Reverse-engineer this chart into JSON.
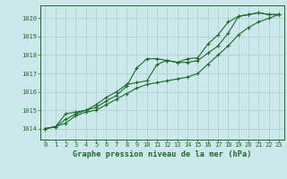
{
  "title": "Graphe pression niveau de la mer (hPa)",
  "bg_color": "#cce8ea",
  "grid_color": "#afd4d6",
  "line_color": "#1a6b2a",
  "spine_color": "#1a6b2a",
  "x_ticks": [
    0,
    1,
    2,
    3,
    4,
    5,
    6,
    7,
    8,
    9,
    10,
    11,
    12,
    13,
    14,
    15,
    16,
    17,
    18,
    19,
    20,
    21,
    22,
    23
  ],
  "y_ticks": [
    1014,
    1015,
    1016,
    1017,
    1018,
    1019,
    1020
  ],
  "ylim": [
    1013.4,
    1020.7
  ],
  "xlim": [
    -0.5,
    23.5
  ],
  "line1": [
    1014.0,
    1014.1,
    1014.8,
    1014.9,
    1015.0,
    1015.15,
    1015.5,
    1015.8,
    1016.3,
    1017.3,
    1017.8,
    1017.8,
    1017.7,
    1017.6,
    1017.8,
    1017.85,
    1018.6,
    1019.1,
    1019.8,
    1020.1,
    1020.2,
    1020.3,
    1020.2,
    1020.2
  ],
  "line2": [
    1014.0,
    1014.1,
    1014.5,
    1014.8,
    1015.0,
    1015.3,
    1015.7,
    1016.0,
    1016.4,
    1016.5,
    1016.6,
    1017.5,
    1017.7,
    1017.6,
    1017.6,
    1017.7,
    1018.1,
    1018.5,
    1019.2,
    1020.1,
    1020.2,
    1020.3,
    1020.2,
    1020.2
  ],
  "line3": [
    1014.0,
    1014.1,
    1014.3,
    1014.7,
    1014.9,
    1015.0,
    1015.3,
    1015.6,
    1015.9,
    1016.2,
    1016.4,
    1016.5,
    1016.6,
    1016.7,
    1016.8,
    1017.0,
    1017.5,
    1018.0,
    1018.5,
    1019.1,
    1019.5,
    1019.8,
    1020.0,
    1020.2
  ],
  "tick_fontsize": 5.0,
  "title_fontsize": 6.2,
  "marker_size": 3.0,
  "line_width": 0.8
}
